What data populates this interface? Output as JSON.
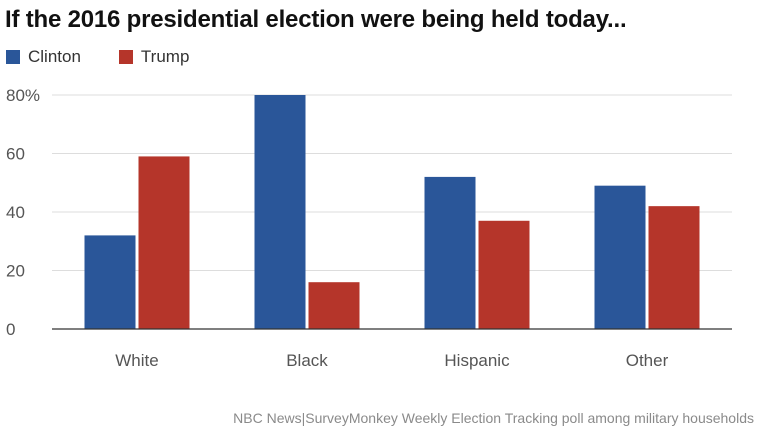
{
  "chart_data": {
    "type": "bar",
    "title": "If the 2016 presidential election were being held today...",
    "categories": [
      "White",
      "Black",
      "Hispanic",
      "Other"
    ],
    "series": [
      {
        "name": "Clinton",
        "values": [
          32,
          80,
          52,
          49
        ],
        "color": "#2a5699"
      },
      {
        "name": "Trump",
        "values": [
          59,
          16,
          37,
          42
        ],
        "color": "#b5352a"
      }
    ],
    "y_ticks": [
      "0",
      "20",
      "40",
      "60",
      "80%"
    ],
    "ylim": [
      0,
      80
    ],
    "grid": true,
    "legend_position": "top-left",
    "source": "NBC News|SurveyMonkey Weekly Election Tracking poll among military households"
  }
}
